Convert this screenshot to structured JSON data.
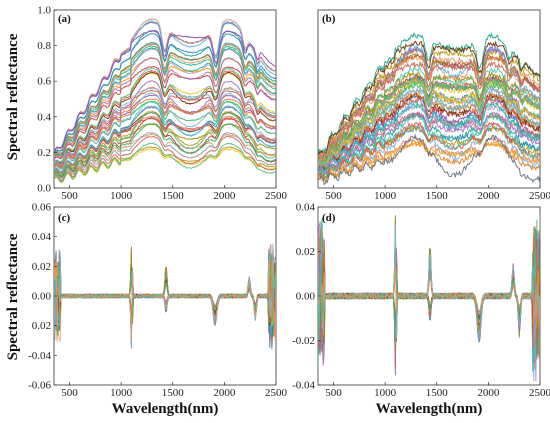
{
  "figure": {
    "ylabel": "Spectral reflectance",
    "xlabel": "Wavelength(nm)"
  },
  "chart_data": [
    {
      "panel": "(a)",
      "type": "line",
      "x_ticks": [
        "500",
        "1000",
        "1500",
        "2000",
        "2500"
      ],
      "y_ticks": [
        "0.0",
        "0.2",
        "0.4",
        "0.6",
        "0.8",
        "1.0"
      ],
      "xlim": [
        350,
        2500
      ],
      "ylim": [
        0.0,
        1.0
      ],
      "series_count": 44,
      "value_range": [
        0.15,
        0.97
      ],
      "grid": false
    },
    {
      "panel": "(b)",
      "type": "line",
      "x_ticks": [
        "500",
        "1000",
        "1500",
        "2000",
        "2500"
      ],
      "y_ticks": [],
      "xlim": [
        350,
        2500
      ],
      "ylim": [
        0.0,
        1.0
      ],
      "series_count": 44,
      "value_range": [
        0.05,
        0.97
      ],
      "grid": false
    },
    {
      "panel": "(c)",
      "type": "line",
      "x_ticks": [
        "500",
        "1000",
        "1500",
        "2000",
        "2500"
      ],
      "y_ticks": [
        "-0.06",
        "-0.04",
        "0.02",
        "0.00",
        "0.02",
        "0.04",
        "0.06"
      ],
      "xlim": [
        350,
        2500
      ],
      "ylim": [
        -0.06,
        0.06
      ],
      "series_count": 44,
      "value_range": [
        -0.045,
        0.045
      ],
      "grid": false
    },
    {
      "panel": "(d)",
      "type": "line",
      "x_ticks": [
        "500",
        "1000",
        "1500",
        "2000",
        "2500"
      ],
      "y_ticks": [
        "-0.04",
        "-0.02",
        "0.00",
        "0.02",
        "0.04"
      ],
      "xlim": [
        350,
        2500
      ],
      "ylim": [
        -0.04,
        0.04
      ],
      "series_count": 44,
      "value_range": [
        -0.035,
        0.038
      ],
      "grid": false
    }
  ],
  "palette": [
    "#c0392b",
    "#8e44ad",
    "#2e86c1",
    "#28b463",
    "#b7950b",
    "#e67e22",
    "#5d6d7e",
    "#d98880",
    "#17a589",
    "#f1c40f",
    "#a569bd",
    "#e74c3c",
    "#5dade2",
    "#6e2c00",
    "#48c9b0",
    "#9b870c",
    "#cd6155",
    "#7fb3d5",
    "#52be80",
    "#e59866",
    "#c39bd3",
    "#909497",
    "#f39c12",
    "#1abc9c"
  ]
}
